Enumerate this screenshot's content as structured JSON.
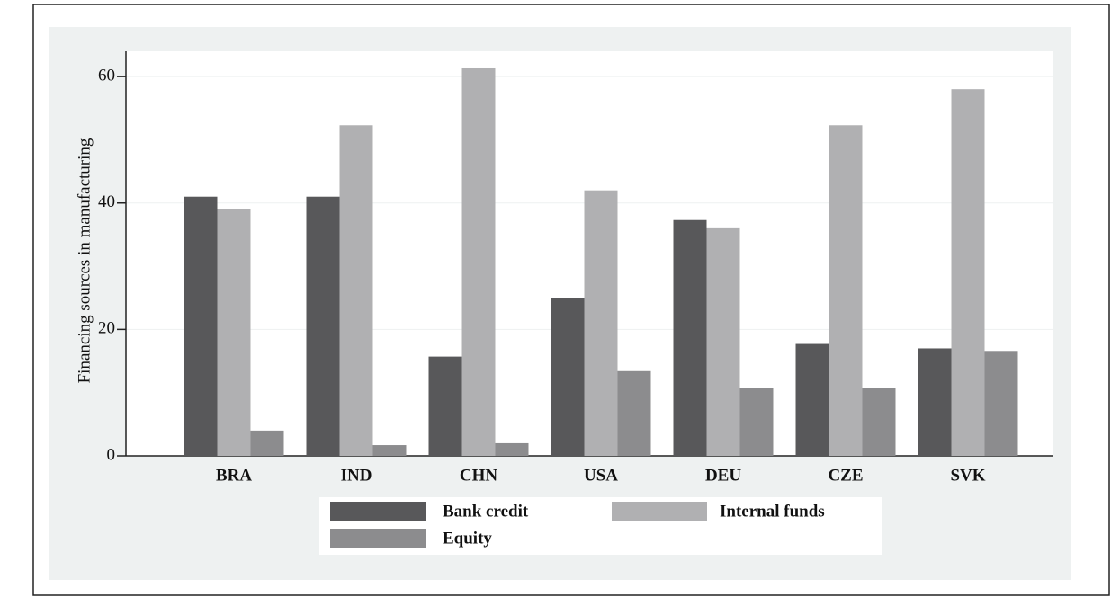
{
  "chart_data": {
    "type": "bar",
    "ylabel": "Financing sources in manufacturing",
    "categories": [
      "BRA",
      "IND",
      "CHN",
      "USA",
      "DEU",
      "CZE",
      "SVK"
    ],
    "series": [
      {
        "name": "Bank credit",
        "color": "#58585a",
        "values": [
          41,
          41,
          15.7,
          25,
          37.3,
          17.7,
          17
        ]
      },
      {
        "name": "Internal funds",
        "color": "#b0b0b2",
        "values": [
          39,
          52.3,
          61.3,
          42,
          36,
          52.3,
          58
        ]
      },
      {
        "name": "Equity",
        "color": "#8c8c8e",
        "values": [
          4,
          1.7,
          2,
          13.4,
          10.7,
          10.7,
          16.6
        ]
      }
    ],
    "ylim": [
      0,
      64
    ],
    "yticks": [
      0,
      20,
      40,
      60
    ],
    "grid": true
  }
}
